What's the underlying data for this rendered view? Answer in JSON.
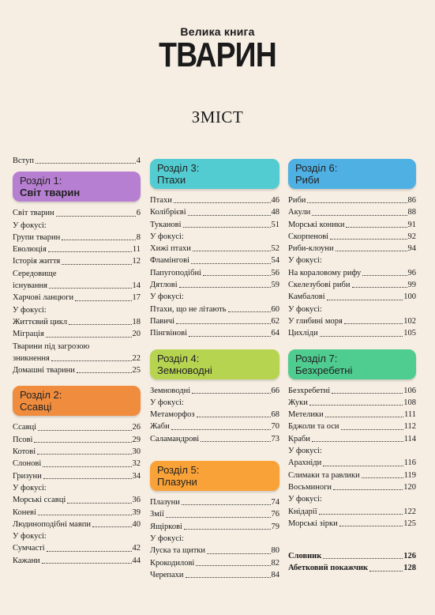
{
  "logo": {
    "small": "Велика книга",
    "big": "ТВАРИН"
  },
  "toc_title": "ЗМІСТ",
  "colors": {
    "section1": "#b77fd2",
    "section2": "#f08c3e",
    "section3": "#52ccd0",
    "section4": "#b7d451",
    "section5": "#f9a237",
    "section6": "#4fb0e4",
    "section7": "#4fcc8f"
  },
  "col1": {
    "intro": {
      "title": "Вступ",
      "page": "4"
    },
    "s1": {
      "line1": "Розділ 1:",
      "line2": "Світ тварин"
    },
    "s1_entries": [
      {
        "title": "Світ тварин",
        "page": "6"
      },
      {
        "label": "У фокусі:"
      },
      {
        "title": "Групи тварин",
        "page": "8"
      },
      {
        "title": "Еволюція",
        "page": "11"
      },
      {
        "title": "Історія життя",
        "page": "12"
      },
      {
        "label": "Середовище"
      },
      {
        "title": "існування",
        "page": "14"
      },
      {
        "title": "Харчові ланцюги",
        "page": "17"
      },
      {
        "label": "У фокусі:"
      },
      {
        "title": "Життєвий цикл",
        "page": "18"
      },
      {
        "title": "Міграція",
        "page": "20"
      },
      {
        "label": "Тварини під загрозою"
      },
      {
        "title": "зникнення",
        "page": "22"
      },
      {
        "title": "Домашні тварини",
        "page": "25"
      }
    ],
    "s2": {
      "line1": "Розділ 2:",
      "line2": "Ссавці"
    },
    "s2_entries": [
      {
        "title": "Ссавці",
        "page": "26"
      },
      {
        "title": "Псові",
        "page": "29"
      },
      {
        "title": "Котові",
        "page": "30"
      },
      {
        "title": "Слонові",
        "page": "32"
      },
      {
        "title": "Гризуни",
        "page": "34"
      },
      {
        "label": "У фокусі:"
      },
      {
        "title": "Морські ссавці",
        "page": "36"
      },
      {
        "title": "Коневі",
        "page": "39"
      },
      {
        "title": "Людиноподібні мавпи",
        "page": "40"
      },
      {
        "label": "У фокусі:"
      },
      {
        "title": "Сумчасті",
        "page": "42"
      },
      {
        "title": "Кажани",
        "page": "44"
      }
    ]
  },
  "col2": {
    "s3": {
      "line1": "Розділ 3:",
      "line2": "Птахи"
    },
    "s3_entries": [
      {
        "title": "Птахи",
        "page": "46"
      },
      {
        "title": "Колібрієві",
        "page": "48"
      },
      {
        "title": "Туканові",
        "page": "51"
      },
      {
        "label": "У фокусі:"
      },
      {
        "title": "Хижі птахи",
        "page": "52"
      },
      {
        "title": "Фламінгові",
        "page": "54"
      },
      {
        "title": "Папугоподібні",
        "page": "56"
      },
      {
        "title": "Дятлові",
        "page": "59"
      },
      {
        "label": "У фокусі:"
      },
      {
        "title": "Птахи, що не літають",
        "page": "60"
      },
      {
        "title": "Павичі",
        "page": "62"
      },
      {
        "title": "Пінгвінові",
        "page": "64"
      }
    ],
    "s4": {
      "line1": "Розділ 4:",
      "line2": "Земноводні"
    },
    "s4_entries": [
      {
        "title": "Земноводні",
        "page": "66"
      },
      {
        "label": "У фокусі:"
      },
      {
        "title": "Метаморфоз",
        "page": "68"
      },
      {
        "title": "Жаби",
        "page": "70"
      },
      {
        "title": "Саламандрові",
        "page": "73"
      }
    ],
    "s5": {
      "line1": "Розділ 5:",
      "line2": "Плазуни"
    },
    "s5_entries": [
      {
        "title": "Плазуни",
        "page": "74"
      },
      {
        "title": "Змії",
        "page": "76"
      },
      {
        "title": "Ящіркові",
        "page": "79"
      },
      {
        "label": "У фокусі:"
      },
      {
        "title": "Луска та щитки",
        "page": "80"
      },
      {
        "title": "Крокодилові",
        "page": "82"
      },
      {
        "title": "Черепахи",
        "page": "84"
      }
    ]
  },
  "col3": {
    "s6": {
      "line1": "Розділ 6:",
      "line2": "Риби"
    },
    "s6_entries": [
      {
        "title": "Риби",
        "page": "86"
      },
      {
        "title": "Акули",
        "page": "88"
      },
      {
        "title": "Морські коники",
        "page": "91"
      },
      {
        "title": "Скорпенові",
        "page": "92"
      },
      {
        "title": "Риби-клоуни",
        "page": "94"
      },
      {
        "label": "У фокусі:"
      },
      {
        "title": "На кораловому рифу",
        "page": "96"
      },
      {
        "title": "Скелезубові риби",
        "page": "99"
      },
      {
        "title": "Камбалові",
        "page": "100"
      },
      {
        "label": "У фокусі:"
      },
      {
        "title": "У глибині моря",
        "page": "102"
      },
      {
        "title": "Цихліди",
        "page": "105"
      }
    ],
    "s7": {
      "line1": "Розділ 7:",
      "line2": "Безхребетні"
    },
    "s7_entries": [
      {
        "title": "Безхребетні",
        "page": "106"
      },
      {
        "title": "Жуки",
        "page": "108"
      },
      {
        "title": "Метелики",
        "page": "111"
      },
      {
        "title": "Бджоли та оси",
        "page": "112"
      },
      {
        "title": "Краби",
        "page": "114"
      },
      {
        "label": "У фокусі:"
      },
      {
        "title": "Арахніди",
        "page": "116"
      },
      {
        "title": "Слимаки та равлики",
        "page": "119"
      },
      {
        "title": "Восьминоги",
        "page": "120"
      },
      {
        "label": "У фокусі:"
      },
      {
        "title": "Кнідарії",
        "page": "122"
      },
      {
        "title": "Морські зірки",
        "page": "125"
      }
    ],
    "end_entries": [
      {
        "title": "Словник",
        "page": "126"
      },
      {
        "title": "Абетковий покажчик",
        "page": "128"
      }
    ]
  }
}
